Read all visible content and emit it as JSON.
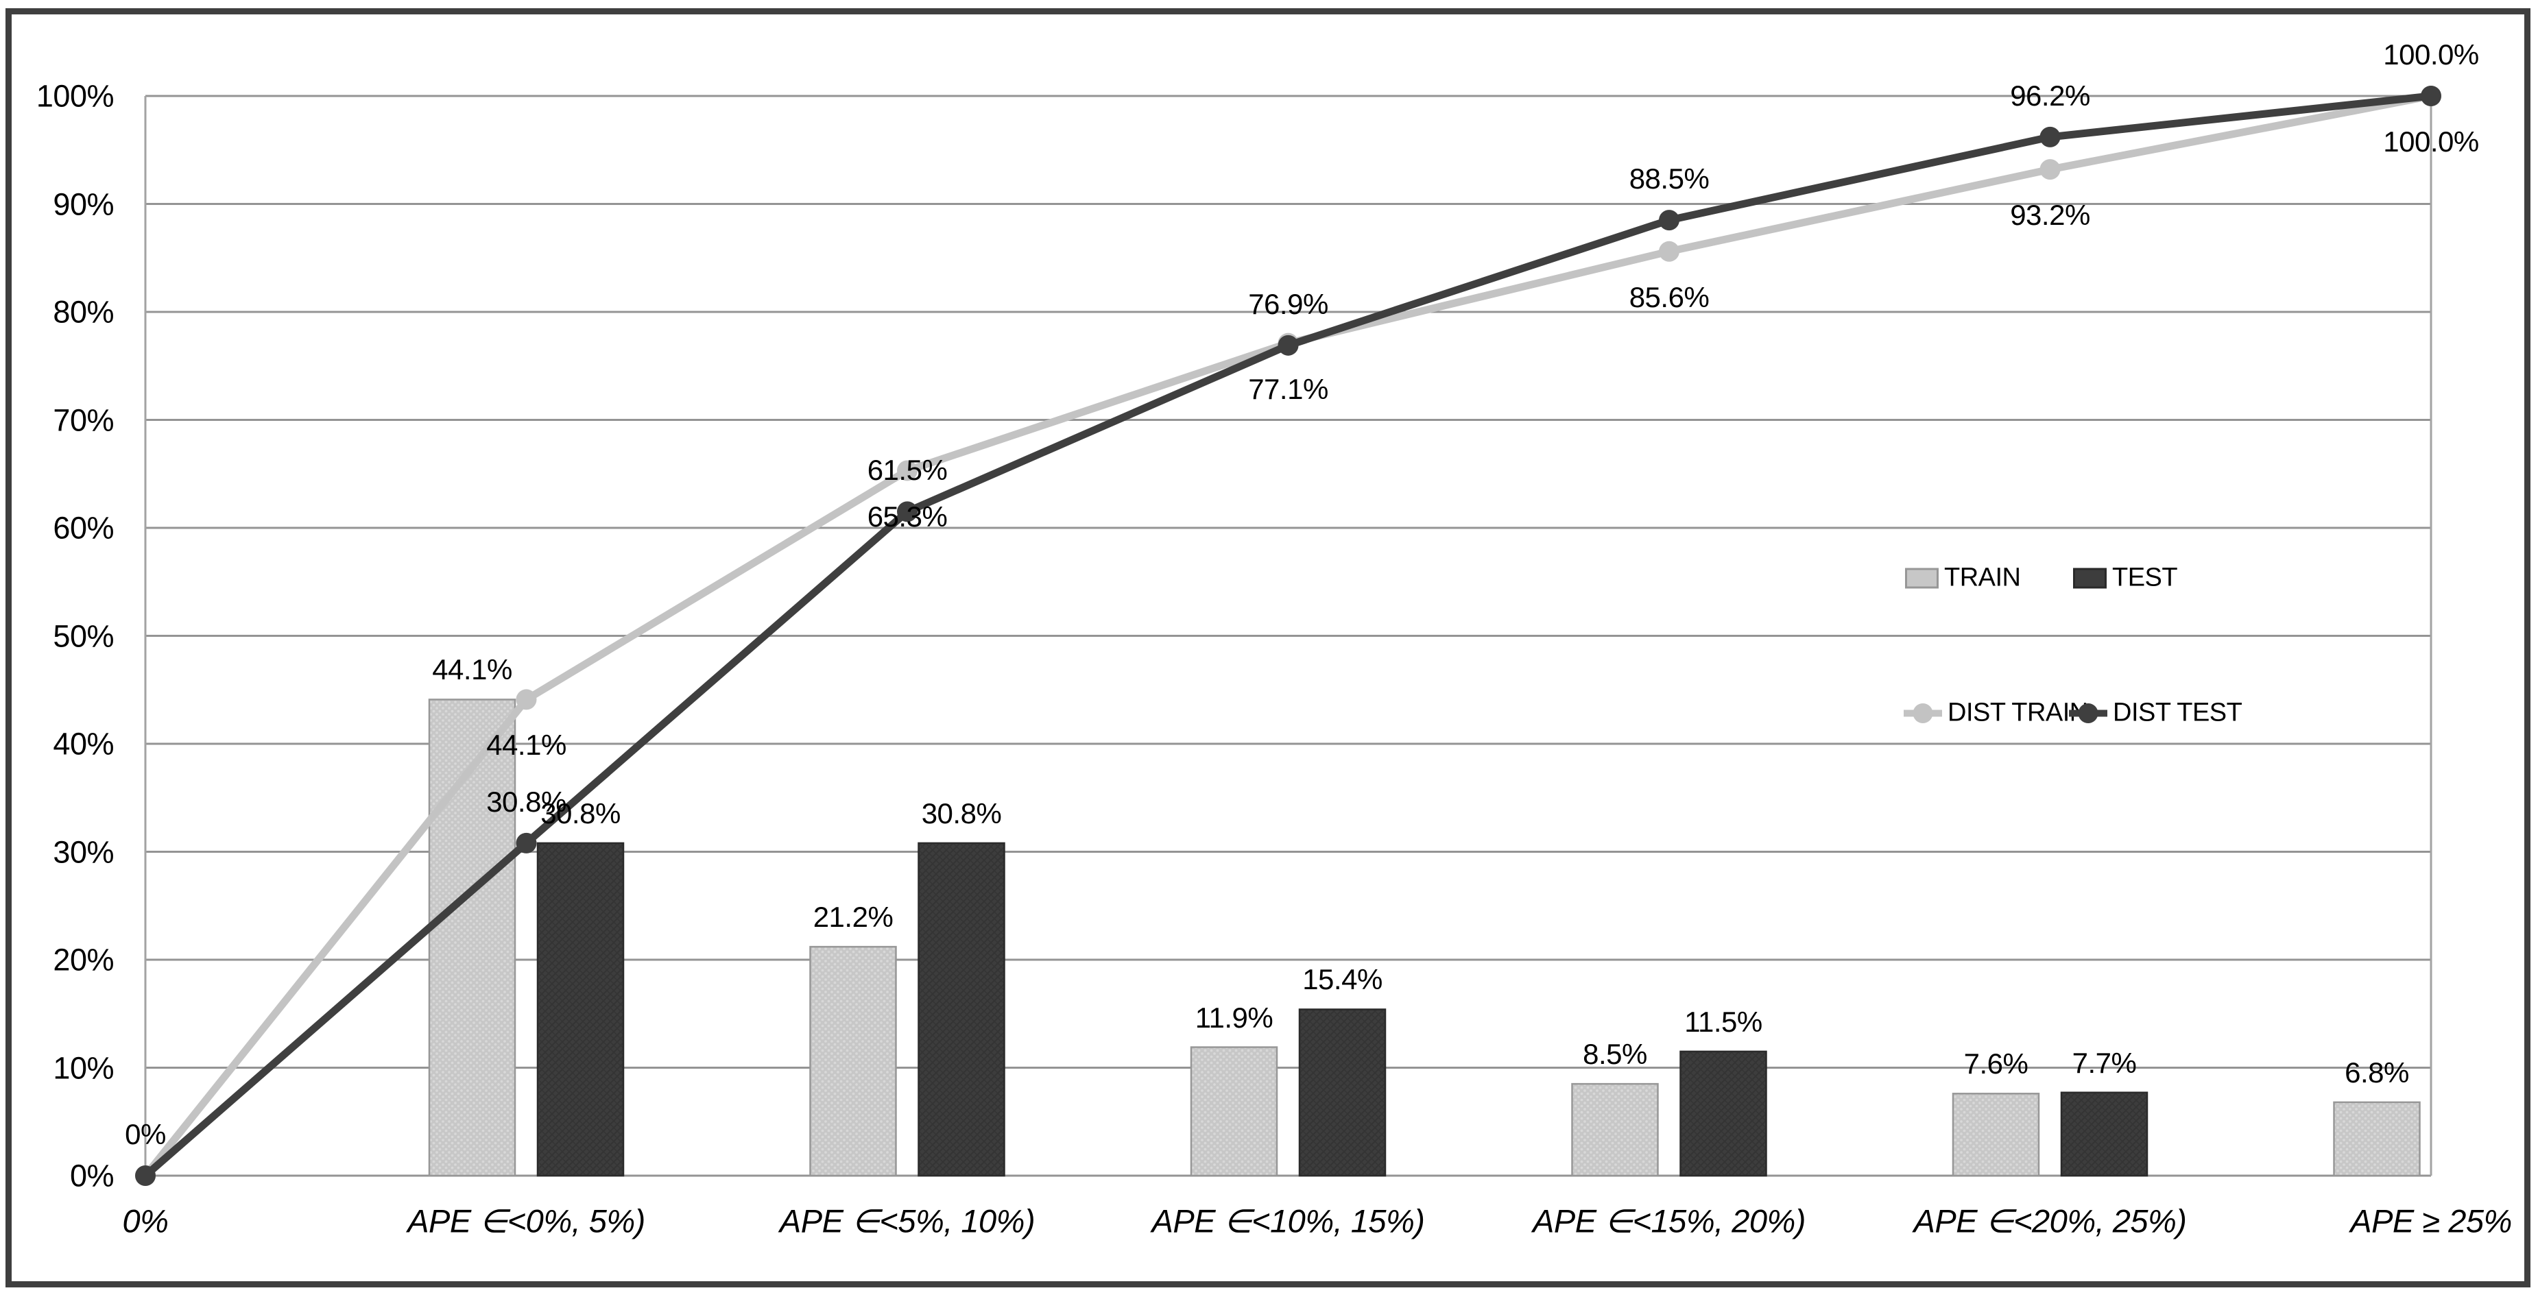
{
  "chart_data": {
    "type": "combo-bar-line",
    "title": "",
    "xlabel": "",
    "ylabel": "",
    "categories": [
      "0%",
      "APE ∈<0%, 5%)",
      "APE ∈<5%, 10%)",
      "APE ∈<10%, 15%)",
      "APE ∈<15%, 20%)",
      "APE ∈<20%, 25%)",
      "APE ≥ 25%"
    ],
    "bar_series": [
      {
        "name": "TRAIN",
        "values": [
          null,
          44.1,
          21.2,
          11.9,
          8.5,
          7.6,
          6.8
        ],
        "labels": [
          "",
          "44.1%",
          "21.2%",
          "11.9%",
          "8.5%",
          "7.6%",
          "6.8%"
        ]
      },
      {
        "name": "TEST",
        "values": [
          null,
          30.8,
          30.8,
          15.4,
          11.5,
          7.7,
          null
        ],
        "labels": [
          "",
          "30.8%",
          "30.8%",
          "15.4%",
          "11.5%",
          "7.7%",
          ""
        ]
      }
    ],
    "line_series": [
      {
        "name": "DIST TRAIN",
        "values": [
          0,
          44.1,
          65.3,
          77.1,
          85.6,
          93.2,
          100.0
        ],
        "labels": [
          "",
          "44.1%",
          "65.3%",
          "77.1%",
          "85.6%",
          "93.2%",
          "100.0%"
        ],
        "label_placement": "below"
      },
      {
        "name": "DIST TEST",
        "values": [
          0,
          30.8,
          61.5,
          76.9,
          88.5,
          96.2,
          100.0
        ],
        "labels": [
          "0%",
          "30.8%",
          "61.5%",
          "76.9%",
          "88.5%",
          "96.2%",
          "100.0%"
        ],
        "label_placement": "above"
      }
    ],
    "y_axis": {
      "min": 0,
      "max": 100,
      "step": 10,
      "grid": true,
      "ticks": [
        "100%",
        "90%",
        "80%",
        "70%",
        "60%",
        "50%",
        "40%",
        "30%",
        "20%",
        "10%",
        "0%"
      ]
    },
    "legend": {
      "position": "middle-right",
      "items": [
        {
          "label": "TRAIN",
          "type": "bar"
        },
        {
          "label": "TEST",
          "type": "bar"
        },
        {
          "label": "DIST TRAIN",
          "type": "line-marker"
        },
        {
          "label": "DIST TEST",
          "type": "line-marker"
        }
      ]
    },
    "colors": {
      "train": "#c7c7c7",
      "train_border": "#979797",
      "train_dot": "#d8d8d8",
      "test": "#3d3d3d",
      "test_border": "#2a2a2a",
      "test_weave": "#343434",
      "dist_train": "#c3c3c3",
      "dist_test": "#3f3f3f",
      "gridline": "#949494",
      "axis": "#a3a3a3",
      "text": "#000000",
      "frame": "#3f3f3f",
      "background": "#ffffff"
    }
  }
}
